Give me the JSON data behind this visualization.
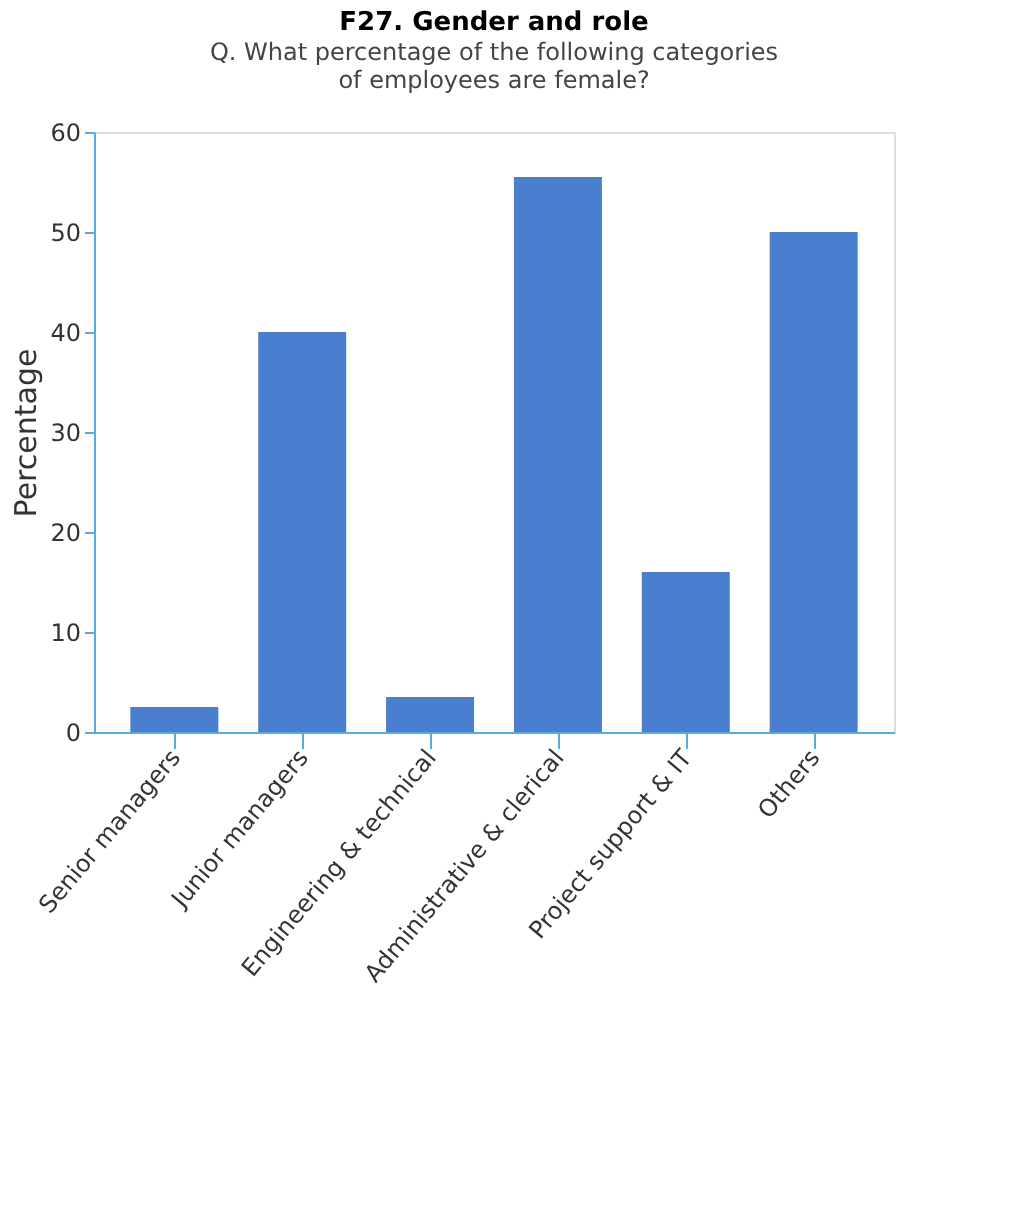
{
  "chart_data": {
    "type": "bar",
    "title": "F27. Gender and role",
    "subtitle": "Q. What percentage of the following categories of employees are female?",
    "ylabel": "Percentage",
    "categories": [
      "Senior managers",
      "Junior managers",
      "Engineering & technical",
      "Administrative & clerical",
      "Project support & IT",
      "Others"
    ],
    "values": [
      2.5,
      40,
      3.5,
      55.5,
      16,
      50
    ],
    "color": "#4a7fd0",
    "ylim": [
      0,
      60
    ],
    "yticks": [
      0,
      10,
      20,
      30,
      40,
      50,
      60
    ],
    "grid": false
  }
}
